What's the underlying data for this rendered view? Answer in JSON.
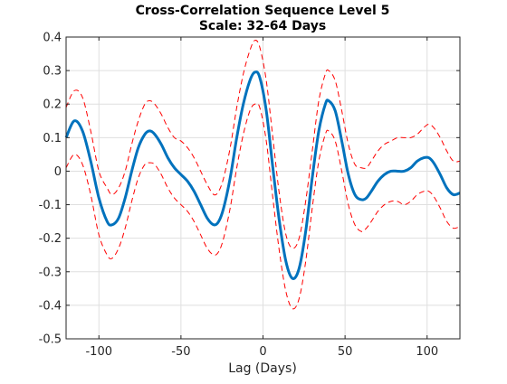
{
  "chart_data": {
    "type": "line",
    "title": "Cross-Correlation Sequence Level 5",
    "subtitle": "Scale: 32-64 Days",
    "xlabel": "Lag (Days)",
    "ylabel": "",
    "xlim": [
      -120,
      120
    ],
    "ylim": [
      -0.5,
      0.4
    ],
    "xticks": [
      -100,
      -50,
      0,
      50,
      100
    ],
    "xtick_labels": [
      "-100",
      "-50",
      "0",
      "50",
      "100"
    ],
    "yticks": [
      -0.5,
      -0.4,
      -0.3,
      -0.2,
      -0.1,
      0,
      0.1,
      0.2,
      0.3,
      0.4
    ],
    "ytick_labels": [
      "-0.5",
      "-0.4",
      "-0.3",
      "-0.2",
      "-0.1",
      "0",
      "0.1",
      "0.2",
      "0.3",
      "0.4"
    ],
    "grid": true,
    "series": [
      {
        "style": "solid",
        "color": "#0072bd",
        "x": [
          -120,
          -115,
          -110,
          -105,
          -100,
          -95,
          -92,
          -88,
          -84,
          -80,
          -76,
          -72,
          -69,
          -66,
          -62,
          -58,
          -54,
          -50,
          -46,
          -42,
          -38,
          -34,
          -30,
          -27,
          -24,
          -20,
          -16,
          -12,
          -8,
          -5,
          -2,
          2,
          6,
          10,
          14,
          18,
          22,
          26,
          30,
          34,
          38,
          40,
          44,
          48,
          52,
          56,
          60,
          63,
          66,
          70,
          74,
          78,
          82,
          86,
          90,
          94,
          98,
          101,
          104,
          108,
          112,
          116,
          120
        ],
        "y": [
          0.1,
          0.15,
          0.12,
          0.03,
          -0.08,
          -0.15,
          -0.16,
          -0.14,
          -0.08,
          0.0,
          0.07,
          0.11,
          0.12,
          0.11,
          0.08,
          0.04,
          0.01,
          -0.01,
          -0.03,
          -0.06,
          -0.1,
          -0.14,
          -0.16,
          -0.15,
          -0.11,
          -0.02,
          0.1,
          0.2,
          0.27,
          0.295,
          0.28,
          0.18,
          0.01,
          -0.15,
          -0.27,
          -0.32,
          -0.29,
          -0.18,
          -0.02,
          0.12,
          0.2,
          0.21,
          0.18,
          0.09,
          -0.01,
          -0.07,
          -0.085,
          -0.08,
          -0.06,
          -0.03,
          -0.01,
          0.0,
          0.0,
          0.0,
          0.01,
          0.03,
          0.04,
          0.04,
          0.025,
          -0.01,
          -0.05,
          -0.07,
          -0.065
        ]
      },
      {
        "style": "dashed",
        "color": "#ff0000",
        "x": [
          -120,
          -115,
          -110,
          -105,
          -100,
          -95,
          -92,
          -88,
          -84,
          -80,
          -76,
          -72,
          -69,
          -66,
          -62,
          -58,
          -54,
          -50,
          -46,
          -42,
          -38,
          -34,
          -30,
          -27,
          -24,
          -20,
          -16,
          -12,
          -8,
          -5,
          -2,
          2,
          6,
          10,
          14,
          18,
          22,
          26,
          30,
          34,
          38,
          40,
          44,
          48,
          52,
          56,
          60,
          63,
          66,
          70,
          74,
          78,
          82,
          86,
          90,
          94,
          98,
          101,
          104,
          108,
          112,
          116,
          120
        ],
        "y": [
          0.19,
          0.24,
          0.22,
          0.12,
          0.0,
          -0.05,
          -0.07,
          -0.05,
          0.0,
          0.08,
          0.15,
          0.2,
          0.21,
          0.2,
          0.17,
          0.13,
          0.1,
          0.09,
          0.07,
          0.04,
          0.0,
          -0.04,
          -0.07,
          -0.06,
          -0.02,
          0.07,
          0.19,
          0.29,
          0.36,
          0.39,
          0.37,
          0.27,
          0.1,
          -0.07,
          -0.19,
          -0.23,
          -0.2,
          -0.09,
          0.06,
          0.21,
          0.29,
          0.3,
          0.27,
          0.18,
          0.08,
          0.02,
          0.01,
          0.01,
          0.03,
          0.06,
          0.08,
          0.09,
          0.1,
          0.1,
          0.1,
          0.11,
          0.13,
          0.14,
          0.13,
          0.1,
          0.06,
          0.03,
          0.03
        ]
      },
      {
        "style": "dashed",
        "color": "#ff0000",
        "x": [
          -120,
          -115,
          -110,
          -105,
          -100,
          -95,
          -92,
          -88,
          -84,
          -80,
          -76,
          -72,
          -69,
          -66,
          -62,
          -58,
          -54,
          -50,
          -46,
          -42,
          -38,
          -34,
          -30,
          -27,
          -24,
          -20,
          -16,
          -12,
          -8,
          -5,
          -2,
          2,
          6,
          10,
          14,
          18,
          22,
          26,
          30,
          34,
          38,
          40,
          44,
          48,
          52,
          56,
          60,
          63,
          66,
          70,
          74,
          78,
          82,
          86,
          90,
          94,
          98,
          101,
          104,
          108,
          112,
          116,
          120
        ],
        "y": [
          0.01,
          0.05,
          0.02,
          -0.07,
          -0.19,
          -0.25,
          -0.26,
          -0.23,
          -0.17,
          -0.09,
          -0.02,
          0.02,
          0.025,
          0.02,
          -0.01,
          -0.05,
          -0.08,
          -0.1,
          -0.12,
          -0.15,
          -0.19,
          -0.23,
          -0.25,
          -0.24,
          -0.2,
          -0.11,
          0.01,
          0.11,
          0.18,
          0.2,
          0.19,
          0.09,
          -0.08,
          -0.24,
          -0.36,
          -0.41,
          -0.38,
          -0.27,
          -0.11,
          0.03,
          0.11,
          0.12,
          0.09,
          0.0,
          -0.1,
          -0.16,
          -0.18,
          -0.17,
          -0.15,
          -0.12,
          -0.1,
          -0.09,
          -0.09,
          -0.1,
          -0.09,
          -0.07,
          -0.06,
          -0.06,
          -0.075,
          -0.11,
          -0.15,
          -0.17,
          -0.165
        ]
      }
    ]
  }
}
